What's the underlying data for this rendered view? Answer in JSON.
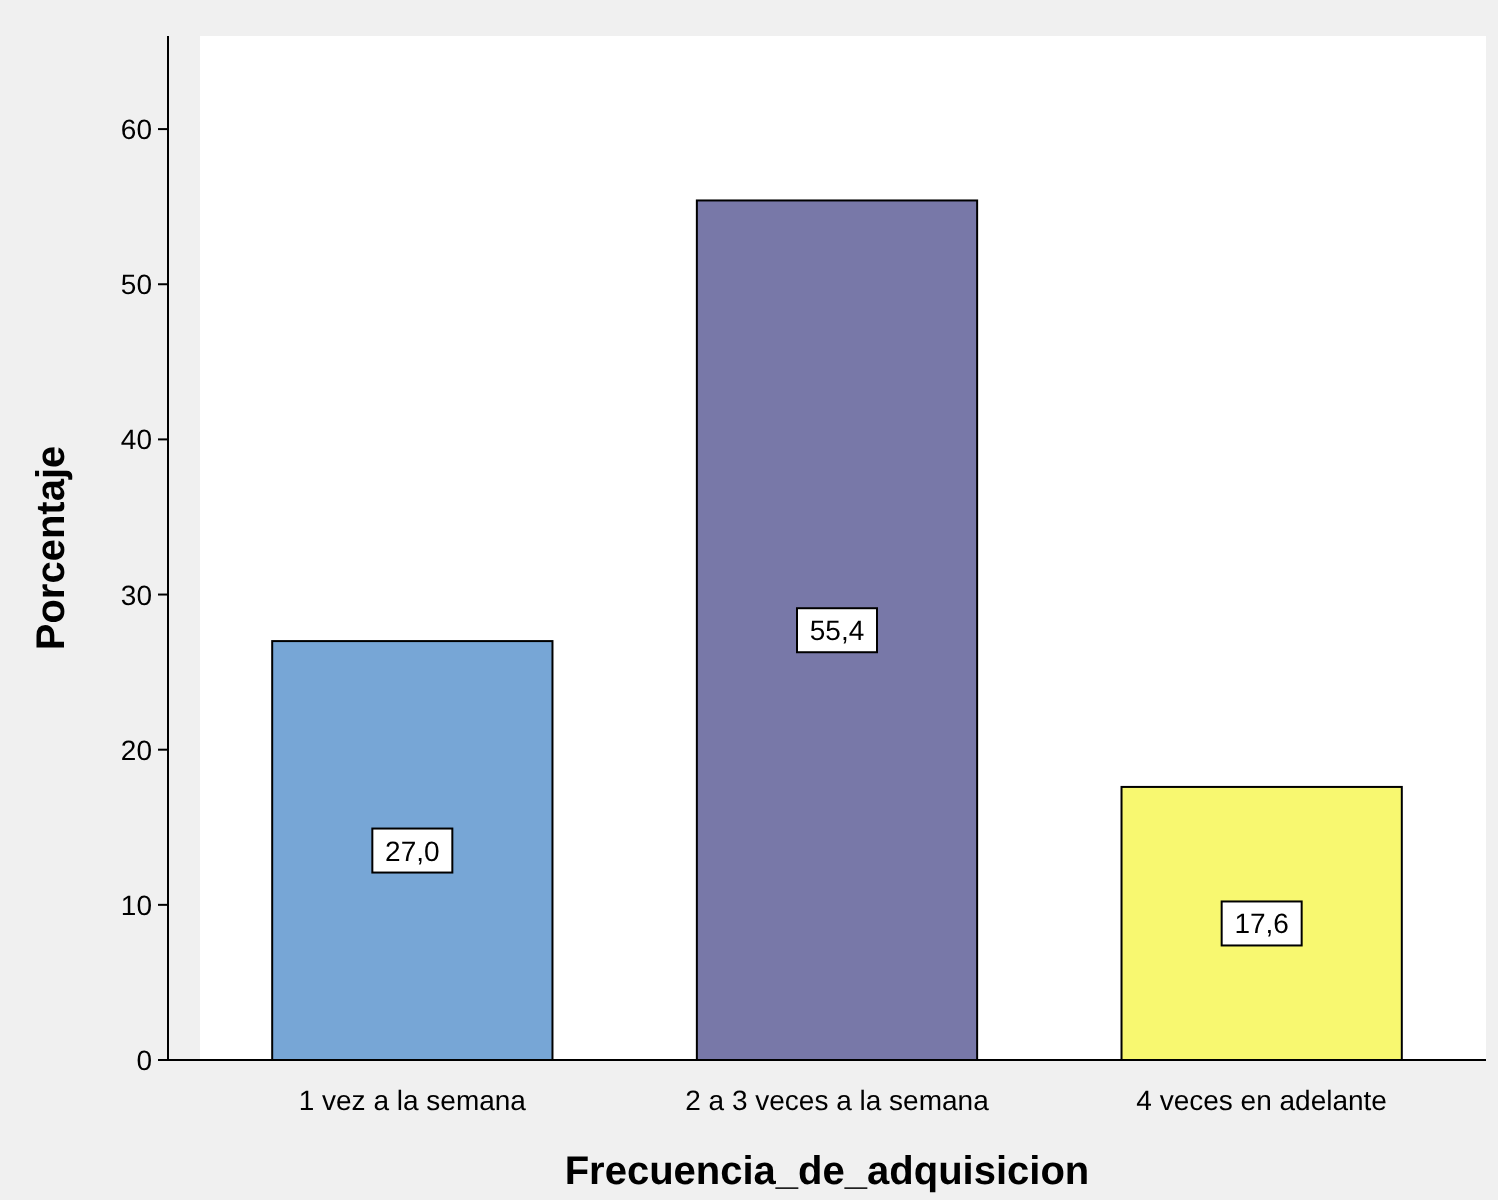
{
  "chart_data": {
    "type": "bar",
    "xlabel": "Frecuencia_de_adquisicion",
    "ylabel": "Porcentaje",
    "categories": [
      "1 vez a la semana",
      "2 a 3 veces a la semana",
      "4 veces en adelante"
    ],
    "values": [
      27.0,
      55.4,
      17.6
    ],
    "colors": [
      "#77a6d6",
      "#7878a8",
      "#f8f870"
    ],
    "value_labels": [
      "27,0",
      "55,4",
      "17,6"
    ],
    "ylim": [
      0,
      66
    ],
    "yticks": [
      0,
      10,
      20,
      30,
      40,
      50,
      60
    ],
    "grid": false
  }
}
